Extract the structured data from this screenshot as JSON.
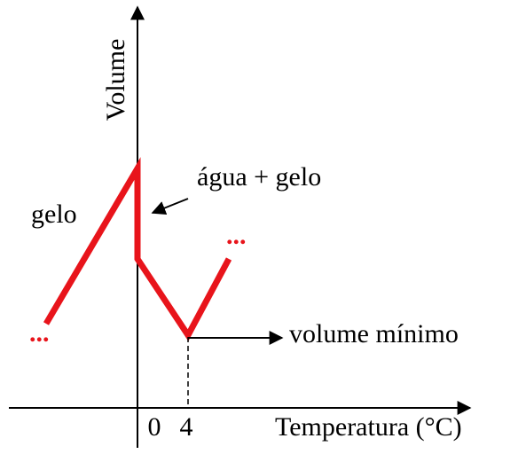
{
  "axes": {
    "y_label": "Volume",
    "x_label": "Temperatura (°C)",
    "x_ticks": [
      "0",
      "4"
    ]
  },
  "annotations": {
    "ice": "gelo",
    "water_ice": "água + gelo",
    "min_volume": "volume mínimo",
    "continue_left": "...",
    "continue_right": "..."
  }
}
